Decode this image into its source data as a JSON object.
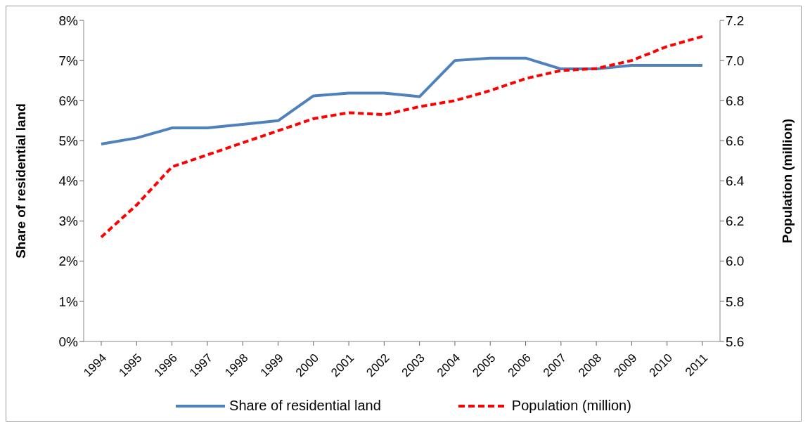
{
  "chart_data": {
    "type": "line",
    "categories": [
      "1994",
      "1995",
      "1996",
      "1997",
      "1998",
      "1999",
      "2000",
      "2001",
      "2002",
      "2003",
      "2004",
      "2005",
      "2006",
      "2007",
      "2008",
      "2009",
      "2010",
      "2011"
    ],
    "ylabel": "Share of residential land",
    "y2label": "Population (million)",
    "ylim": [
      0,
      8
    ],
    "yticks": [
      {
        "value": 0,
        "label": "0%"
      },
      {
        "value": 1,
        "label": "1%"
      },
      {
        "value": 2,
        "label": "2%"
      },
      {
        "value": 3,
        "label": "3%"
      },
      {
        "value": 4,
        "label": "4%"
      },
      {
        "value": 5,
        "label": "5%"
      },
      {
        "value": 6,
        "label": "6%"
      },
      {
        "value": 7,
        "label": "7%"
      },
      {
        "value": 8,
        "label": "8%"
      }
    ],
    "y2lim": [
      5.6,
      7.2
    ],
    "y2ticks": [
      {
        "value": 5.6,
        "label": "5.6"
      },
      {
        "value": 5.8,
        "label": "5.8"
      },
      {
        "value": 6,
        "label": "6.0"
      },
      {
        "value": 6.2,
        "label": "6.2"
      },
      {
        "value": 6.4,
        "label": "6.4"
      },
      {
        "value": 6.6,
        "label": "6.6"
      },
      {
        "value": 6.8,
        "label": "6.8"
      },
      {
        "value": 7,
        "label": "7.0"
      },
      {
        "value": 7.2,
        "label": "7.2"
      }
    ],
    "legend": "bottom",
    "series": [
      {
        "name": "Share of residential land",
        "color": "#4f81bd",
        "line_style": "solid",
        "values": [
          4.92,
          5.07,
          5.32,
          5.32,
          5.41,
          5.5,
          6.12,
          6.19,
          6.19,
          6.1,
          7.0,
          7.06,
          7.06,
          6.79,
          6.79,
          6.88,
          6.88,
          6.88
        ]
      },
      {
        "name": "Population (million)",
        "color": "#ff0000",
        "line_style": "dashed",
        "axis": "y2",
        "values": [
          6.12,
          6.28,
          6.47,
          6.53,
          6.59,
          6.65,
          6.71,
          6.74,
          6.73,
          6.77,
          6.8,
          6.85,
          6.91,
          6.95,
          6.96,
          7.0,
          7.07,
          7.12
        ]
      }
    ]
  }
}
